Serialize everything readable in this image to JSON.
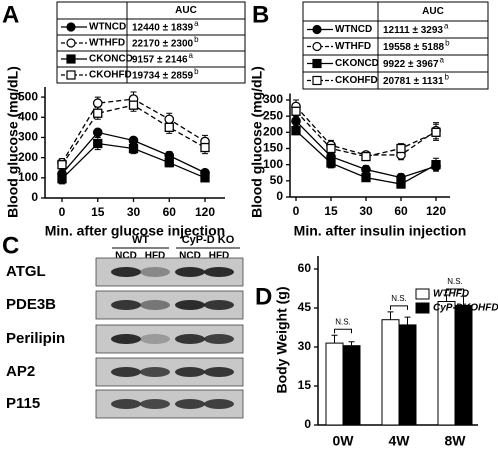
{
  "chart_data": [
    {
      "type": "line",
      "panel_label": "A",
      "ylabel": "Blood glucose (mg/dL)",
      "xlabel": "Min. after glucose injection",
      "categories": [
        "0",
        "15",
        "30",
        "60",
        "120"
      ],
      "ylim": [
        0,
        550
      ],
      "yticks": [
        0,
        100,
        200,
        300,
        400,
        500
      ],
      "table_header": "AUC",
      "series": [
        {
          "name": "WTNCD",
          "color": "#000000",
          "marker": "circle",
          "filled": true,
          "dashed": false,
          "values": [
            120,
            325,
            285,
            210,
            125
          ],
          "errors": [
            15,
            15,
            15,
            20,
            15
          ],
          "auc": "12440 ± 1839",
          "auc_mark": "a"
        },
        {
          "name": "WTHFD",
          "color": "#000000",
          "marker": "circle",
          "filled": false,
          "dashed": true,
          "values": [
            175,
            470,
            490,
            390,
            280
          ],
          "errors": [
            20,
            30,
            35,
            30,
            30
          ],
          "auc": "22170 ± 2300",
          "auc_mark": "b"
        },
        {
          "name": "CKONCD",
          "color": "#000000",
          "marker": "square",
          "filled": true,
          "dashed": false,
          "values": [
            95,
            270,
            245,
            175,
            100
          ],
          "errors": [
            25,
            30,
            25,
            20,
            15
          ],
          "auc": "9157 ± 2146",
          "auc_mark": "a"
        },
        {
          "name": "CKOHFD",
          "color": "#000000",
          "marker": "square",
          "filled": false,
          "dashed": true,
          "values": [
            165,
            420,
            460,
            350,
            250
          ],
          "errors": [
            20,
            30,
            30,
            30,
            30
          ],
          "auc": "19734 ± 2859",
          "auc_mark": "b"
        }
      ]
    },
    {
      "type": "line",
      "panel_label": "B",
      "ylabel": "Blood glucose (mg/dL)",
      "xlabel": "Min. after insulin injection",
      "categories": [
        "0",
        "15",
        "30",
        "60",
        "120"
      ],
      "ylim": [
        0,
        320
      ],
      "yticks": [
        0,
        50,
        100,
        150,
        200,
        250,
        300
      ],
      "table_header": "AUC",
      "series": [
        {
          "name": "WTNCD",
          "color": "#000000",
          "marker": "circle",
          "filled": true,
          "dashed": false,
          "values": [
            235,
            125,
            85,
            60,
            95
          ],
          "errors": [
            15,
            15,
            12,
            12,
            15
          ],
          "auc": "12111 ± 3293",
          "auc_mark": "a"
        },
        {
          "name": "WTHFD",
          "color": "#000000",
          "marker": "circle",
          "filled": false,
          "dashed": true,
          "values": [
            280,
            160,
            130,
            130,
            205
          ],
          "errors": [
            20,
            15,
            10,
            15,
            25
          ],
          "auc": "19558 ± 5188",
          "auc_mark": "b"
        },
        {
          "name": "CKONCD",
          "color": "#000000",
          "marker": "square",
          "filled": true,
          "dashed": false,
          "values": [
            205,
            105,
            60,
            40,
            100
          ],
          "errors": [
            12,
            15,
            10,
            8,
            20
          ],
          "auc": "9922 ± 3967",
          "auc_mark": "a"
        },
        {
          "name": "CKOHFD",
          "color": "#000000",
          "marker": "square",
          "filled": false,
          "dashed": true,
          "values": [
            265,
            150,
            125,
            150,
            200
          ],
          "errors": [
            15,
            15,
            10,
            15,
            25
          ],
          "auc": "20781 ± 1131",
          "auc_mark": "b"
        }
      ]
    },
    {
      "type": "bar",
      "panel_label": "D",
      "ylabel": "Body Weight (g)",
      "categories": [
        "0W",
        "4W",
        "8W"
      ],
      "ylim": [
        0,
        65
      ],
      "yticks": [
        0,
        15,
        30,
        45,
        60
      ],
      "annotations": [
        "N.S.",
        "N.S.",
        "N.S."
      ],
      "series": [
        {
          "name": "WTHFD",
          "color": "#ffffff",
          "values": [
            31.5,
            40.5,
            47.5
          ],
          "errors": [
            3,
            3,
            2.5
          ]
        },
        {
          "name": "CyP-DKOHFD",
          "color": "#000000",
          "values": [
            30.5,
            38.5,
            46
          ],
          "errors": [
            1.5,
            3,
            3.5
          ]
        }
      ]
    }
  ],
  "blot": {
    "panel_label": "C",
    "groups": [
      "WT",
      "CyP-D KO"
    ],
    "lanes": [
      "NCD",
      "HFD",
      "NCD",
      "HFD"
    ],
    "proteins": [
      "ATGL",
      "PDE3B",
      "Perilipin",
      "AP2",
      "P115"
    ]
  }
}
